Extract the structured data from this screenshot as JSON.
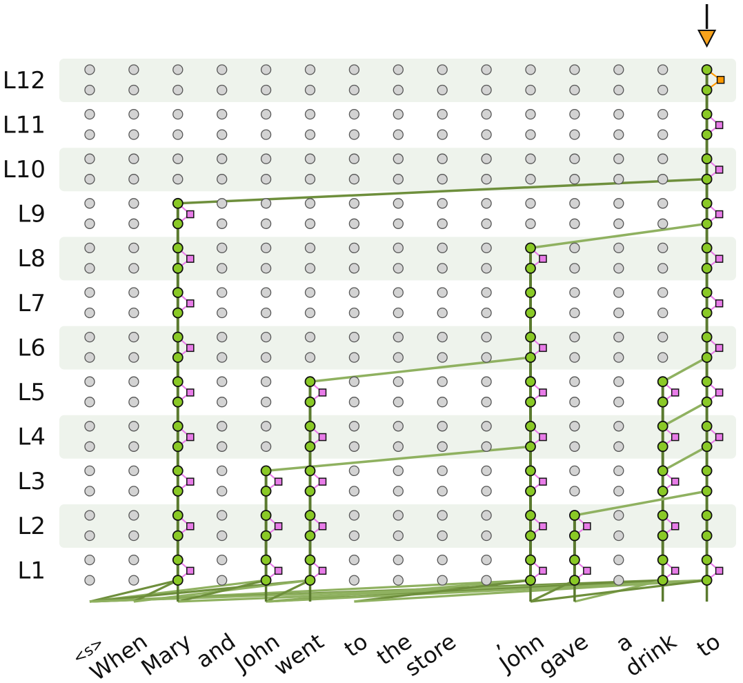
{
  "title_hidden": "",
  "layers": [
    "L1",
    "L2",
    "L3",
    "L4",
    "L5",
    "L6",
    "L7",
    "L8",
    "L9",
    "L10",
    "L11",
    "L12"
  ],
  "tokens": [
    "<s>",
    "When",
    "Mary",
    "and",
    "John",
    "went",
    "to",
    "the",
    "store",
    ",",
    "John",
    "gave",
    "a",
    "drink",
    "to"
  ],
  "target_token_index": 14,
  "colors": {
    "band": "#eef3ec",
    "node_inactive": "#d3d3d3",
    "node_active": "#8ac926",
    "residual": "#5a7a2e",
    "edge": "#8fb160",
    "edge_dark": "#6e8f3c",
    "attn_head": "#e87ce8",
    "mlp_out": "#ff9900",
    "arrow": "#f7a21b"
  },
  "circuit": {
    "active_token_columns": [
      2,
      4,
      5,
      10,
      11,
      13,
      14
    ],
    "residual_ranges": [
      {
        "token": 2,
        "from_layer": 0,
        "to_layer": 8
      },
      {
        "token": 4,
        "from_layer": 0,
        "to_layer": 2
      },
      {
        "token": 5,
        "from_layer": 0,
        "to_layer": 4
      },
      {
        "token": 10,
        "from_layer": 0,
        "to_layer": 7
      },
      {
        "token": 11,
        "from_layer": 0,
        "to_layer": 1
      },
      {
        "token": 13,
        "from_layer": 0,
        "to_layer": 4
      },
      {
        "token": 14,
        "from_layer": 0,
        "to_layer": 11
      }
    ],
    "attention_nodes": [
      {
        "token": 2,
        "layers": [
          0,
          1,
          2,
          3,
          4,
          5,
          6,
          7,
          8
        ]
      },
      {
        "token": 4,
        "layers": [
          0,
          1,
          2
        ]
      },
      {
        "token": 5,
        "layers": [
          0,
          1,
          2,
          3,
          4
        ]
      },
      {
        "token": 10,
        "layers": [
          0,
          1,
          2,
          3,
          4,
          5,
          7
        ]
      },
      {
        "token": 11,
        "layers": [
          0,
          1
        ]
      },
      {
        "token": 13,
        "layers": [
          0,
          1,
          2,
          3,
          4
        ]
      },
      {
        "token": 14,
        "layers": [
          0,
          3,
          4,
          5,
          6,
          7,
          8,
          9,
          10
        ]
      }
    ],
    "mlp_output_layer": 11,
    "cross_edges": [
      {
        "from_token": 2,
        "from_layer": 8,
        "from_slot": "top",
        "to_token": 14,
        "to_layer": 9,
        "to_slot": "bottom"
      },
      {
        "from_token": 10,
        "from_layer": 7,
        "from_slot": "top",
        "to_token": 14,
        "to_layer": 8,
        "to_slot": "bottom"
      },
      {
        "from_token": 5,
        "from_layer": 4,
        "from_slot": "top",
        "to_token": 10,
        "to_layer": 5,
        "to_slot": "bottom"
      },
      {
        "from_token": 13,
        "from_layer": 4,
        "from_slot": "top",
        "to_token": 14,
        "to_layer": 5,
        "to_slot": "bottom"
      },
      {
        "from_token": 13,
        "from_layer": 3,
        "from_slot": "top",
        "to_token": 14,
        "to_layer": 4,
        "to_slot": "bottom"
      },
      {
        "from_token": 4,
        "from_layer": 2,
        "from_slot": "top",
        "to_token": 10,
        "to_layer": 3,
        "to_slot": "bottom"
      },
      {
        "from_token": 13,
        "from_layer": 2,
        "from_slot": "top",
        "to_token": 14,
        "to_layer": 3,
        "to_slot": "bottom"
      },
      {
        "from_token": 11,
        "from_layer": 1,
        "from_slot": "top",
        "to_token": 14,
        "to_layer": 2,
        "to_slot": "bottom"
      }
    ],
    "embedding_edges": [
      {
        "from_token": 0,
        "to_token": 2
      },
      {
        "from_token": 0,
        "to_token": 4
      },
      {
        "from_token": 0,
        "to_token": 5
      },
      {
        "from_token": 0,
        "to_token": 10
      },
      {
        "from_token": 0,
        "to_token": 13
      },
      {
        "from_token": 0,
        "to_token": 14
      },
      {
        "from_token": 1,
        "to_token": 2
      },
      {
        "from_token": 1,
        "to_token": 5
      },
      {
        "from_token": 2,
        "to_token": 4
      },
      {
        "from_token": 2,
        "to_token": 14
      },
      {
        "from_token": 4,
        "to_token": 5
      },
      {
        "from_token": 4,
        "to_token": 10
      },
      {
        "from_token": 4,
        "to_token": 13
      },
      {
        "from_token": 4,
        "to_token": 14
      },
      {
        "from_token": 6,
        "to_token": 10
      },
      {
        "from_token": 6,
        "to_token": 14
      },
      {
        "from_token": 10,
        "to_token": 11
      },
      {
        "from_token": 11,
        "to_token": 13
      },
      {
        "from_token": 10,
        "to_token": 14
      }
    ]
  }
}
